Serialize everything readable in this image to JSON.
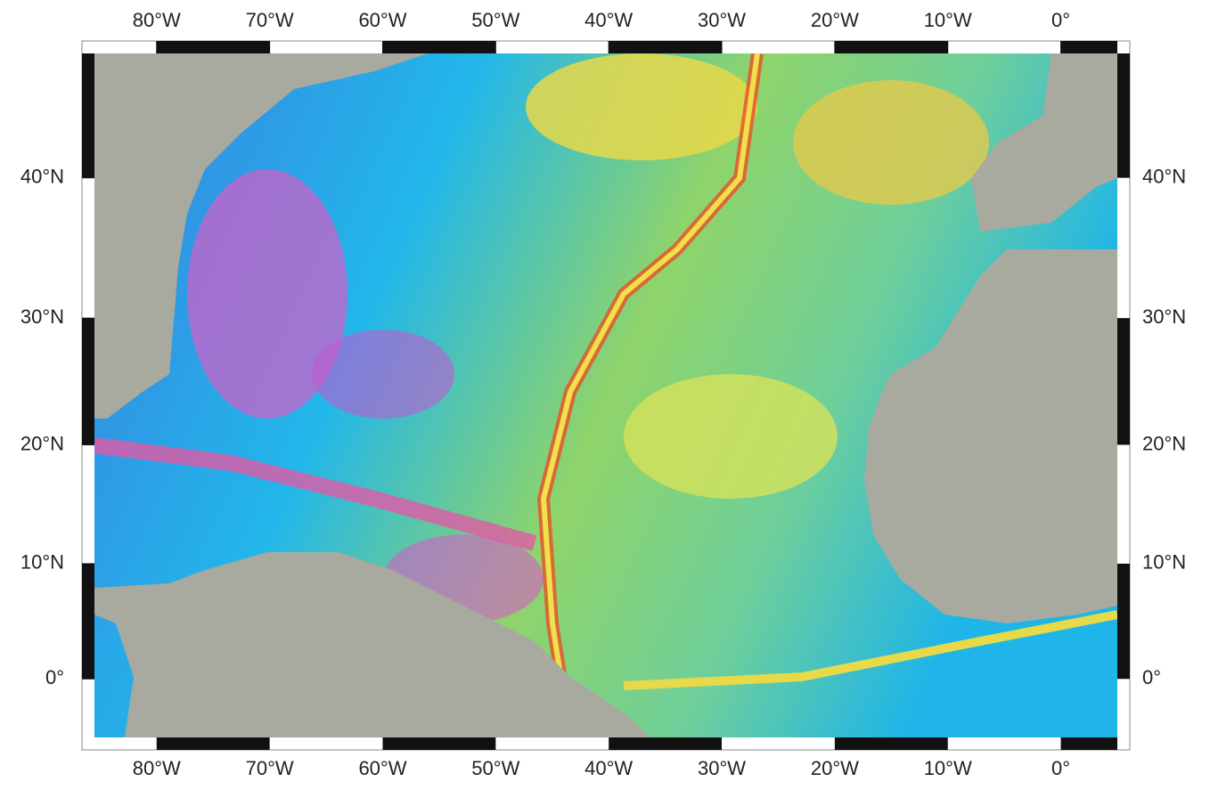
{
  "map": {
    "lon_range": [
      -85.5,
      5
    ],
    "lat_range": [
      -5.1,
      47.8
    ],
    "lon_ticks": [
      {
        "value": -80,
        "label": "80°W"
      },
      {
        "value": -70,
        "label": "70°W"
      },
      {
        "value": -60,
        "label": "60°W"
      },
      {
        "value": -50,
        "label": "50°W"
      },
      {
        "value": -40,
        "label": "40°W"
      },
      {
        "value": -30,
        "label": "30°W"
      },
      {
        "value": -20,
        "label": "20°W"
      },
      {
        "value": -10,
        "label": "10°W"
      },
      {
        "value": 0,
        "label": "0°"
      }
    ],
    "lat_ticks": [
      {
        "value": 40,
        "label": "40°N"
      },
      {
        "value": 30,
        "label": "30°N"
      },
      {
        "value": 20,
        "label": "20°N"
      },
      {
        "value": 10,
        "label": "10°N"
      },
      {
        "value": 0,
        "label": "0°"
      }
    ]
  }
}
